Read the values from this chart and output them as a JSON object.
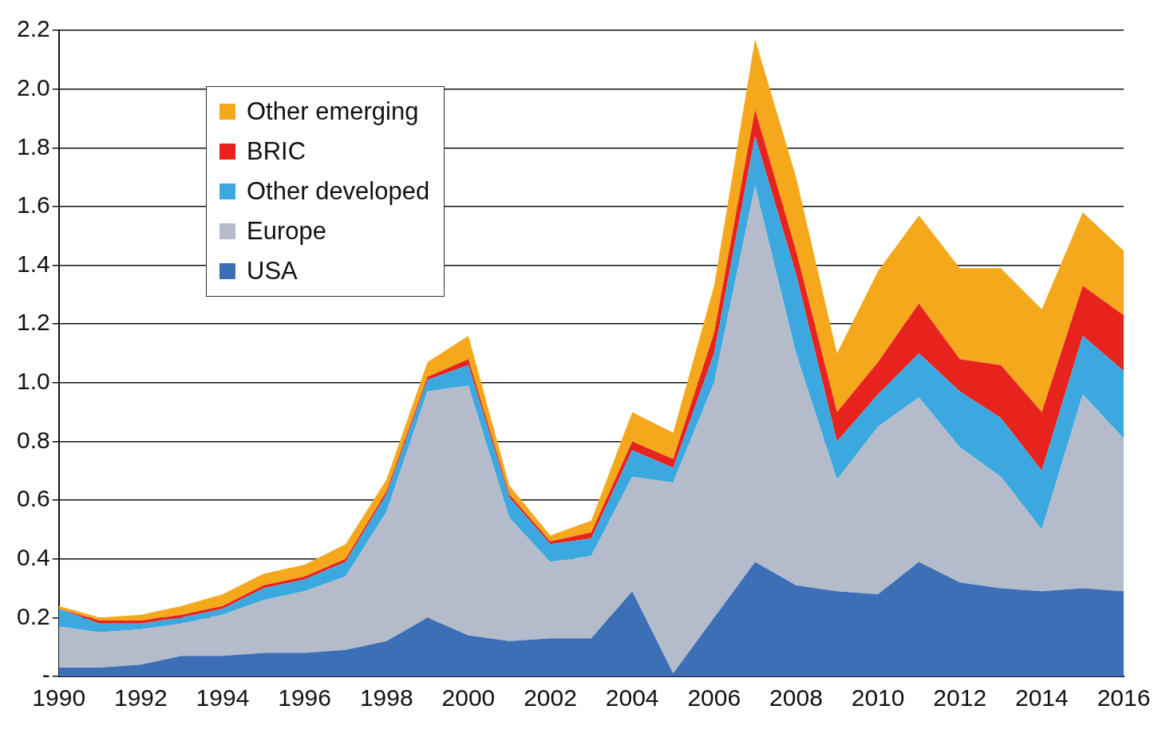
{
  "chart_data": {
    "type": "area",
    "stacked": true,
    "x": [
      1990,
      1991,
      1992,
      1993,
      1994,
      1995,
      1996,
      1997,
      1998,
      1999,
      2000,
      2001,
      2002,
      2003,
      2004,
      2005,
      2006,
      2007,
      2008,
      2009,
      2010,
      2011,
      2012,
      2013,
      2014,
      2015,
      2016
    ],
    "series": [
      {
        "name": "USA",
        "color": "#3d6fb6",
        "values": [
          0.03,
          0.03,
          0.04,
          0.07,
          0.07,
          0.08,
          0.08,
          0.09,
          0.12,
          0.2,
          0.14,
          0.12,
          0.13,
          0.13,
          0.29,
          0.01,
          0.2,
          0.39,
          0.31,
          0.29,
          0.28,
          0.39,
          0.32,
          0.3,
          0.29,
          0.3,
          0.29
        ]
      },
      {
        "name": "Europe",
        "color": "#b4bccb",
        "values": [
          0.14,
          0.12,
          0.12,
          0.11,
          0.14,
          0.18,
          0.21,
          0.25,
          0.44,
          0.77,
          0.85,
          0.42,
          0.26,
          0.28,
          0.39,
          0.65,
          0.8,
          1.28,
          0.79,
          0.38,
          0.57,
          0.56,
          0.46,
          0.38,
          0.21,
          0.66,
          0.52
        ]
      },
      {
        "name": "Other developed",
        "color": "#3ba9df",
        "values": [
          0.06,
          0.03,
          0.02,
          0.02,
          0.02,
          0.04,
          0.04,
          0.05,
          0.06,
          0.04,
          0.07,
          0.07,
          0.06,
          0.06,
          0.09,
          0.05,
          0.1,
          0.17,
          0.27,
          0.13,
          0.11,
          0.15,
          0.19,
          0.2,
          0.2,
          0.2,
          0.23
        ]
      },
      {
        "name": "BRIC",
        "color": "#e8231e",
        "values": [
          0,
          0.01,
          0.01,
          0.01,
          0.01,
          0.01,
          0.01,
          0.01,
          0.01,
          0.01,
          0.02,
          0.01,
          0.01,
          0.02,
          0.03,
          0.03,
          0.07,
          0.09,
          0.08,
          0.1,
          0.11,
          0.17,
          0.11,
          0.18,
          0.2,
          0.17,
          0.19
        ]
      },
      {
        "name": "Other emerging",
        "color": "#f5a81c",
        "values": [
          0.01,
          0.01,
          0.02,
          0.03,
          0.04,
          0.04,
          0.04,
          0.05,
          0.04,
          0.05,
          0.08,
          0.03,
          0.02,
          0.04,
          0.1,
          0.09,
          0.16,
          0.24,
          0.25,
          0.2,
          0.31,
          0.3,
          0.31,
          0.33,
          0.35,
          0.25,
          0.22
        ]
      }
    ],
    "xlim": [
      1990,
      2016
    ],
    "xticks": [
      1990,
      1992,
      1994,
      1996,
      1998,
      2000,
      2002,
      2004,
      2006,
      2008,
      2010,
      2012,
      2014,
      2016
    ],
    "ylim": [
      0,
      2.2
    ],
    "yticks": [
      {
        "value": 0,
        "label": "-"
      },
      0.2,
      0.4,
      0.6,
      0.8,
      {
        "value": 1,
        "label": "1.0"
      },
      1.2,
      1.4,
      1.6,
      1.8,
      {
        "value": 2,
        "label": "2.0"
      },
      2.2
    ],
    "grid": "y",
    "legend": "top left"
  }
}
